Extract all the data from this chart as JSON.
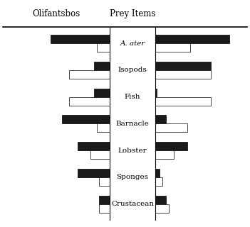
{
  "prey_items": [
    "A. ater",
    "Isopods",
    "Fish",
    "Barnacle",
    "Lobster",
    "Sponges",
    "Crustacean"
  ],
  "italic_items": [
    "A. ater"
  ],
  "olifantsbos_diver": [
    55,
    15,
    15,
    45,
    30,
    30,
    10
  ],
  "olifantsbos_trap": [
    12,
    38,
    38,
    12,
    18,
    10,
    10
  ],
  "knol_diver": [
    80,
    60,
    2,
    12,
    35,
    5,
    12
  ],
  "knol_trap": [
    38,
    60,
    60,
    35,
    20,
    8,
    15
  ],
  "bar_height": 0.32,
  "trap_color": "white",
  "diver_color": "#1a1a1a",
  "edgecolor": "black",
  "title_left": "Olifantsbos",
  "title_center": "Prey Items",
  "background_color": "white",
  "max_val": 100,
  "label_fontsize": 7.5,
  "title_fontsize": 8.5
}
